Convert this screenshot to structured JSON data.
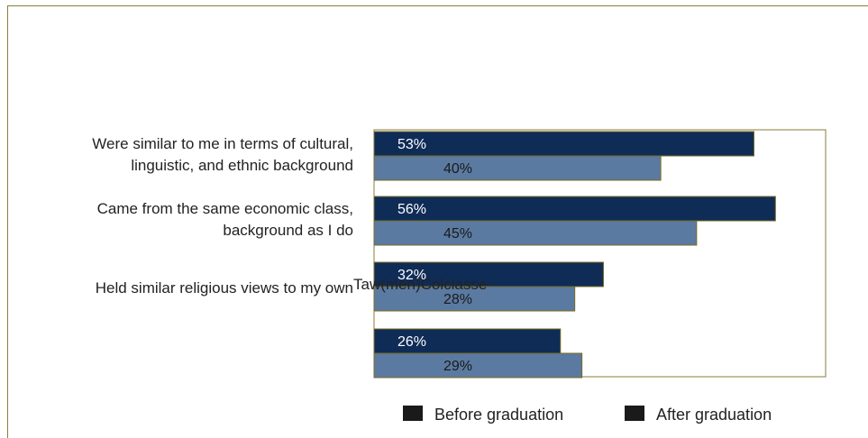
{
  "chart_data": {
    "type": "bar",
    "orientation": "horizontal",
    "categories": [
      [
        "Were similar to me in terms of cultural,",
        "linguistic, and ethnic background"
      ],
      [
        "Came from the same economic class,",
        "background as I do"
      ],
      [
        "Held similar religious views to my own"
      ],
      []
    ],
    "overlay_text": "Taw(men)Colclasse",
    "series": [
      {
        "name": "Before graduation",
        "values": [
          53,
          56,
          32,
          26
        ],
        "labels": [
          "53%",
          "56%",
          "32%",
          "26%"
        ]
      },
      {
        "name": "After graduation",
        "values": [
          40,
          45,
          28,
          29
        ],
        "labels": [
          "40%",
          "45%",
          "28%",
          "29%"
        ]
      }
    ],
    "legend_position": "bottom",
    "grid": false,
    "xlim": [
      0,
      63
    ],
    "colors": {
      "before": "#0f2c57",
      "after": "#5b7aa1",
      "bar_edge": "#7a6b20",
      "plot_border": "#8a7d3a",
      "legend_swatch": "#1a1a1a",
      "before_label": "#ffffff",
      "after_label": "#1a1a1a"
    }
  }
}
